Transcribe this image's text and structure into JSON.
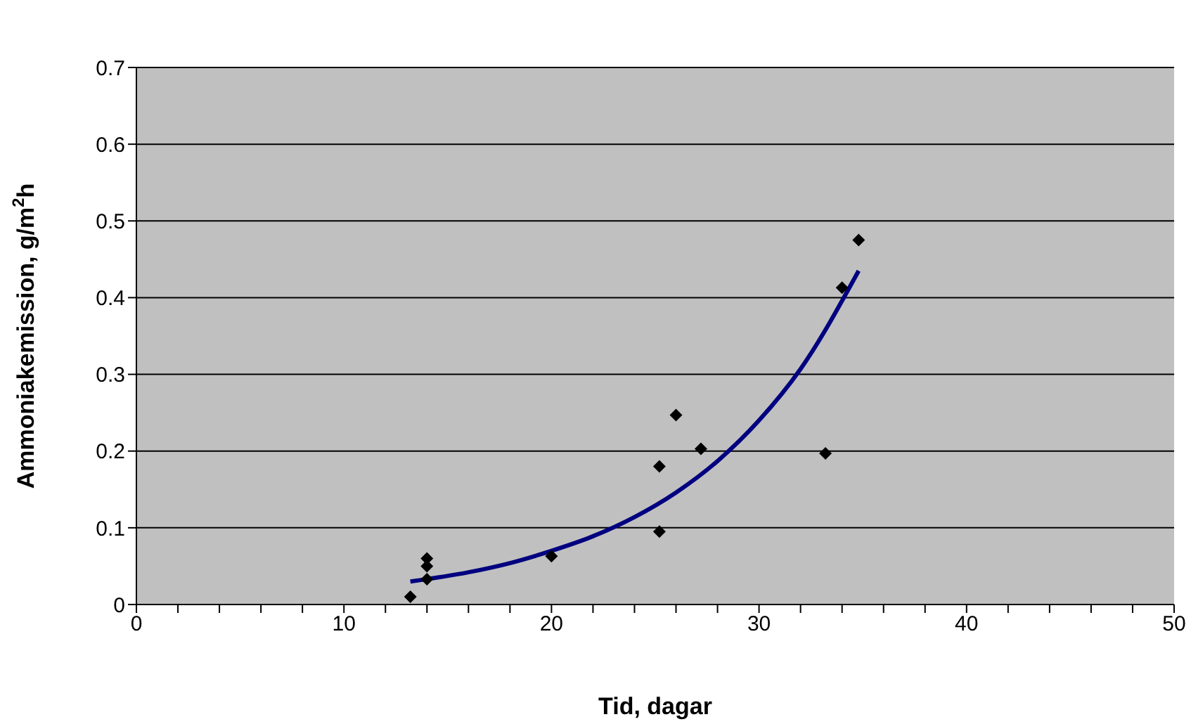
{
  "chart_data": {
    "type": "scatter",
    "xlabel": "Tid, dagar",
    "ylabel": "Ammoniakemission, g/m$^{2}$h",
    "xlim": [
      0,
      50
    ],
    "ylim": [
      0,
      0.7
    ],
    "xticks": [
      0,
      {
        "value": 2,
        "label": null
      },
      {
        "value": 4,
        "label": null
      },
      {
        "value": 6,
        "label": null
      },
      {
        "value": 8,
        "label": null
      },
      10,
      {
        "value": 12,
        "label": null
      },
      {
        "value": 14,
        "label": null
      },
      {
        "value": 16,
        "label": null
      },
      {
        "value": 18,
        "label": null
      },
      20,
      {
        "value": 22,
        "label": null
      },
      {
        "value": 24,
        "label": null
      },
      {
        "value": 26,
        "label": null
      },
      {
        "value": 28,
        "label": null
      },
      30,
      {
        "value": 32,
        "label": null
      },
      {
        "value": 34,
        "label": null
      },
      {
        "value": 36,
        "label": null
      },
      {
        "value": 38,
        "label": null
      },
      40,
      {
        "value": 42,
        "label": null
      },
      {
        "value": 44,
        "label": null
      },
      {
        "value": 46,
        "label": null
      },
      {
        "value": 48,
        "label": null
      },
      50
    ],
    "yticks": [
      0,
      0.1,
      0.2,
      0.3,
      0.4,
      0.5,
      0.6,
      0.7
    ],
    "grid": "y",
    "legend": false,
    "series": [
      {
        "color": "#000000",
        "marker": "diamond",
        "x": [
          13.2,
          14,
          14,
          14,
          20,
          25.2,
          25.2,
          26,
          27.2,
          33.2,
          34,
          34.8
        ],
        "values": [
          0.01,
          0.06,
          0.05,
          0.033,
          0.063,
          0.18,
          0.095,
          0.247,
          0.203,
          0.197,
          0.413,
          0.475
        ]
      },
      {
        "type": "line",
        "color": "#000080",
        "marker": "none",
        "line_style": "solid",
        "x": [
          13.2,
          16,
          18,
          20,
          22,
          24,
          26,
          28,
          30,
          32,
          34.8
        ],
        "values": [
          0.03,
          0.042,
          0.054,
          0.07,
          0.089,
          0.114,
          0.146,
          0.187,
          0.24,
          0.307,
          0.435
        ]
      }
    ]
  }
}
